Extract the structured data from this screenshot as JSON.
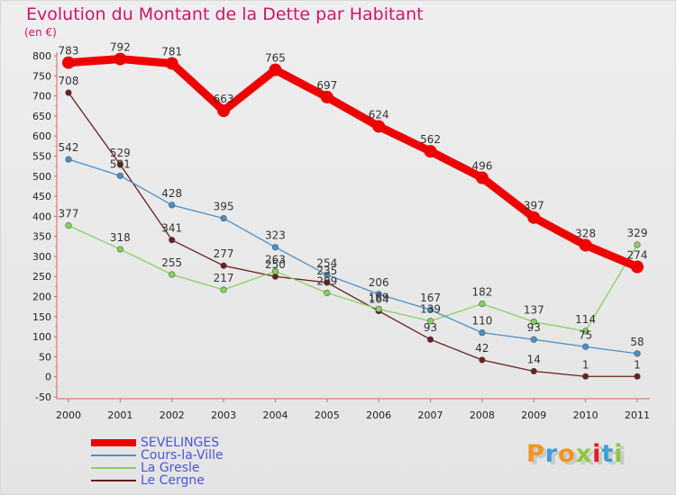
{
  "title": "Evolution du Montant de la Dette par Habitant",
  "unit": "(en €)",
  "logo": {
    "text": "Proxiti",
    "letter_colors": [
      "#f39322",
      "#3aa0d8",
      "#f39322",
      "#8cc63f",
      "#e31b23",
      "#3aa0d8",
      "#8cc63f"
    ]
  },
  "chart_data": {
    "type": "line",
    "x": [
      "2000",
      "2001",
      "2002",
      "2003",
      "2004",
      "2005",
      "2006",
      "2007",
      "2008",
      "2009",
      "2010",
      "2011"
    ],
    "ylim": [
      -50,
      800
    ],
    "yticks": [
      "-50",
      "0",
      "50",
      "100",
      "150",
      "200",
      "250",
      "300",
      "350",
      "400",
      "450",
      "500",
      "550",
      "600",
      "650",
      "700",
      "750",
      "800"
    ],
    "grid": false,
    "legend_position": "bottom-left",
    "series": [
      {
        "name": "SEVELINGES",
        "color": "#ee0000",
        "values": [
          783,
          792,
          781,
          663,
          765,
          697,
          624,
          562,
          496,
          397,
          328,
          274
        ],
        "labels": [
          "783",
          "792",
          "781",
          "663",
          "765",
          "697",
          "624",
          "562",
          "496",
          "397",
          "328",
          "274"
        ]
      },
      {
        "name": "Cours-la-Ville",
        "color": "#4a90c8",
        "values": [
          542,
          501,
          428,
          395,
          323,
          254,
          206,
          167,
          110,
          93,
          75,
          58
        ],
        "labels": [
          "542",
          "501",
          "428",
          "395",
          "323",
          "254",
          "206",
          "167",
          "110",
          "93",
          "75",
          "58"
        ]
      },
      {
        "name": "La Gresle",
        "color": "#88d060",
        "values": [
          377,
          318,
          255,
          217,
          263,
          209,
          169,
          139,
          182,
          137,
          114,
          329
        ],
        "labels": [
          "377",
          "318",
          "255",
          "217",
          "263",
          "209",
          "169",
          "139",
          "182",
          "137",
          "114",
          "329"
        ]
      },
      {
        "name": "Le Cergne",
        "color": "#6a1e1e",
        "values": [
          708,
          529,
          341,
          277,
          250,
          235,
          164,
          93,
          42,
          14,
          1,
          1
        ],
        "labels": [
          "708",
          "529",
          "341",
          "277",
          "250",
          "235",
          "164",
          "93",
          "42",
          "14",
          "1",
          "1"
        ]
      }
    ]
  }
}
